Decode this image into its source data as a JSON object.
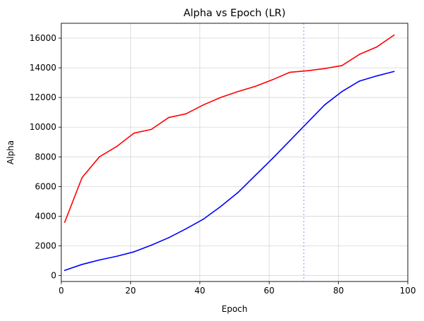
{
  "chart_data": {
    "type": "line",
    "title": "Alpha vs Epoch (LR)",
    "xlabel": "Epoch",
    "ylabel": "Alpha",
    "xlim": [
      0,
      100
    ],
    "ylim": [
      -400,
      17000
    ],
    "x_ticks": [
      0,
      20,
      40,
      60,
      80,
      100
    ],
    "y_ticks": [
      0,
      2000,
      4000,
      6000,
      8000,
      10000,
      12000,
      14000,
      16000
    ],
    "grid": true,
    "legend": "none",
    "reference_lines": [
      {
        "axis": "x",
        "value": 70,
        "color": "#aaaaff",
        "style": "dotted"
      }
    ],
    "x": [
      1,
      6,
      11,
      16,
      21,
      26,
      31,
      36,
      41,
      46,
      51,
      56,
      61,
      66,
      71,
      76,
      81,
      86,
      91,
      96
    ],
    "series": [
      {
        "color": "#ff0000",
        "values": [
          3600,
          6600,
          8000,
          8700,
          9600,
          9850,
          10650,
          10900,
          11500,
          12000,
          12400,
          12750,
          13200,
          13700,
          13800,
          13950,
          14150,
          14900,
          15400,
          16200
        ]
      },
      {
        "color": "#0000ff",
        "values": [
          350,
          750,
          1050,
          1300,
          1600,
          2050,
          2550,
          3150,
          3800,
          4650,
          5600,
          6750,
          7900,
          9100,
          10300,
          11500,
          12400,
          13100,
          13450,
          13750
        ]
      }
    ]
  }
}
